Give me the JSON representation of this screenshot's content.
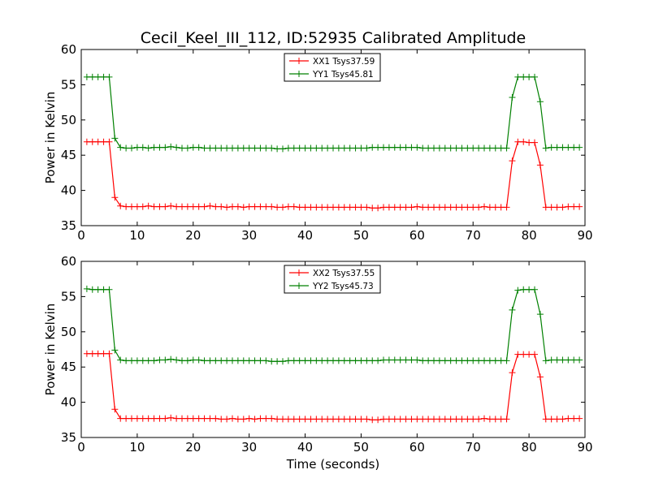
{
  "chart_data": [
    {
      "type": "line",
      "title": "Cecil_Keel_III_112, ID:52935 Calibrated Amplitude",
      "xlabel": "",
      "ylabel": "Power in Kelvin",
      "xlim": [
        0,
        90
      ],
      "ylim": [
        35,
        60
      ],
      "xticks": [
        0,
        10,
        20,
        30,
        40,
        50,
        60,
        70,
        80,
        90
      ],
      "yticks": [
        35,
        40,
        45,
        50,
        55,
        60
      ],
      "grid": false,
      "legend_position": "top-center",
      "series": [
        {
          "name": "XX1 Tsys37.59",
          "color": "#ff0000",
          "x": [
            1,
            2,
            3,
            4,
            5,
            6,
            7,
            8,
            9,
            10,
            11,
            12,
            13,
            14,
            15,
            16,
            17,
            18,
            19,
            20,
            21,
            22,
            23,
            24,
            25,
            26,
            27,
            28,
            29,
            30,
            31,
            32,
            33,
            34,
            35,
            36,
            37,
            38,
            39,
            40,
            41,
            42,
            43,
            44,
            45,
            46,
            47,
            48,
            49,
            50,
            51,
            52,
            53,
            54,
            55,
            56,
            57,
            58,
            59,
            60,
            61,
            62,
            63,
            64,
            65,
            66,
            67,
            68,
            69,
            70,
            71,
            72,
            73,
            74,
            75,
            76,
            77,
            78,
            79,
            80,
            81,
            82,
            83,
            84,
            85,
            86,
            87,
            88,
            89
          ],
          "values": [
            46.9,
            46.9,
            46.9,
            46.9,
            46.9,
            39.0,
            37.8,
            37.7,
            37.7,
            37.7,
            37.7,
            37.8,
            37.7,
            37.7,
            37.7,
            37.8,
            37.7,
            37.7,
            37.7,
            37.7,
            37.7,
            37.7,
            37.8,
            37.7,
            37.7,
            37.6,
            37.7,
            37.7,
            37.6,
            37.7,
            37.7,
            37.7,
            37.7,
            37.7,
            37.6,
            37.6,
            37.7,
            37.7,
            37.6,
            37.6,
            37.6,
            37.6,
            37.6,
            37.6,
            37.6,
            37.6,
            37.6,
            37.6,
            37.6,
            37.6,
            37.6,
            37.5,
            37.5,
            37.6,
            37.6,
            37.6,
            37.6,
            37.6,
            37.6,
            37.7,
            37.6,
            37.6,
            37.6,
            37.6,
            37.6,
            37.6,
            37.6,
            37.6,
            37.6,
            37.6,
            37.6,
            37.7,
            37.6,
            37.6,
            37.6,
            37.6,
            44.2,
            46.9,
            46.9,
            46.8,
            46.8,
            43.6,
            37.6,
            37.6,
            37.6,
            37.6,
            37.7,
            37.7,
            37.7
          ]
        },
        {
          "name": "YY1 Tsys45.81",
          "color": "#008000",
          "x": [
            1,
            2,
            3,
            4,
            5,
            6,
            7,
            8,
            9,
            10,
            11,
            12,
            13,
            14,
            15,
            16,
            17,
            18,
            19,
            20,
            21,
            22,
            23,
            24,
            25,
            26,
            27,
            28,
            29,
            30,
            31,
            32,
            33,
            34,
            35,
            36,
            37,
            38,
            39,
            40,
            41,
            42,
            43,
            44,
            45,
            46,
            47,
            48,
            49,
            50,
            51,
            52,
            53,
            54,
            55,
            56,
            57,
            58,
            59,
            60,
            61,
            62,
            63,
            64,
            65,
            66,
            67,
            68,
            69,
            70,
            71,
            72,
            73,
            74,
            75,
            76,
            77,
            78,
            79,
            80,
            81,
            82,
            83,
            84,
            85,
            86,
            87,
            88,
            89
          ],
          "values": [
            56.1,
            56.1,
            56.1,
            56.1,
            56.1,
            47.4,
            46.1,
            46.0,
            46.0,
            46.1,
            46.1,
            46.0,
            46.1,
            46.1,
            46.1,
            46.2,
            46.1,
            46.0,
            46.0,
            46.1,
            46.1,
            46.0,
            46.0,
            46.0,
            46.0,
            46.0,
            46.0,
            46.0,
            46.0,
            46.0,
            46.0,
            46.0,
            46.0,
            46.0,
            45.9,
            45.9,
            46.0,
            46.0,
            46.0,
            46.0,
            46.0,
            46.0,
            46.0,
            46.0,
            46.0,
            46.0,
            46.0,
            46.0,
            46.0,
            46.0,
            46.0,
            46.1,
            46.1,
            46.1,
            46.1,
            46.1,
            46.1,
            46.1,
            46.1,
            46.1,
            46.0,
            46.0,
            46.0,
            46.0,
            46.0,
            46.0,
            46.0,
            46.0,
            46.0,
            46.0,
            46.0,
            46.0,
            46.0,
            46.0,
            46.0,
            46.0,
            53.2,
            56.1,
            56.1,
            56.1,
            56.1,
            52.6,
            46.0,
            46.1,
            46.1,
            46.1,
            46.1,
            46.1,
            46.1
          ]
        }
      ]
    },
    {
      "type": "line",
      "title": "",
      "xlabel": "Time (seconds)",
      "ylabel": "Power in Kelvin",
      "xlim": [
        0,
        90
      ],
      "ylim": [
        35,
        60
      ],
      "xticks": [
        0,
        10,
        20,
        30,
        40,
        50,
        60,
        70,
        80,
        90
      ],
      "yticks": [
        35,
        40,
        45,
        50,
        55,
        60
      ],
      "grid": false,
      "legend_position": "top-center",
      "series": [
        {
          "name": "XX2 Tsys37.55",
          "color": "#ff0000",
          "x": [
            1,
            2,
            3,
            4,
            5,
            6,
            7,
            8,
            9,
            10,
            11,
            12,
            13,
            14,
            15,
            16,
            17,
            18,
            19,
            20,
            21,
            22,
            23,
            24,
            25,
            26,
            27,
            28,
            29,
            30,
            31,
            32,
            33,
            34,
            35,
            36,
            37,
            38,
            39,
            40,
            41,
            42,
            43,
            44,
            45,
            46,
            47,
            48,
            49,
            50,
            51,
            52,
            53,
            54,
            55,
            56,
            57,
            58,
            59,
            60,
            61,
            62,
            63,
            64,
            65,
            66,
            67,
            68,
            69,
            70,
            71,
            72,
            73,
            74,
            75,
            76,
            77,
            78,
            79,
            80,
            81,
            82,
            83,
            84,
            85,
            86,
            87,
            88,
            89
          ],
          "values": [
            46.9,
            46.9,
            46.9,
            46.9,
            46.9,
            39.0,
            37.7,
            37.7,
            37.7,
            37.7,
            37.7,
            37.7,
            37.7,
            37.7,
            37.7,
            37.8,
            37.7,
            37.7,
            37.7,
            37.7,
            37.7,
            37.7,
            37.7,
            37.7,
            37.6,
            37.6,
            37.7,
            37.6,
            37.6,
            37.7,
            37.6,
            37.7,
            37.7,
            37.7,
            37.6,
            37.6,
            37.6,
            37.6,
            37.6,
            37.6,
            37.6,
            37.6,
            37.6,
            37.6,
            37.6,
            37.6,
            37.6,
            37.6,
            37.6,
            37.6,
            37.6,
            37.5,
            37.5,
            37.6,
            37.6,
            37.6,
            37.6,
            37.6,
            37.6,
            37.6,
            37.6,
            37.6,
            37.6,
            37.6,
            37.6,
            37.6,
            37.6,
            37.6,
            37.6,
            37.6,
            37.6,
            37.7,
            37.6,
            37.6,
            37.6,
            37.6,
            44.2,
            46.8,
            46.8,
            46.8,
            46.8,
            43.6,
            37.6,
            37.6,
            37.6,
            37.6,
            37.7,
            37.7,
            37.7
          ]
        },
        {
          "name": "YY2 Tsys45.73",
          "color": "#008000",
          "x": [
            1,
            2,
            3,
            4,
            5,
            6,
            7,
            8,
            9,
            10,
            11,
            12,
            13,
            14,
            15,
            16,
            17,
            18,
            19,
            20,
            21,
            22,
            23,
            24,
            25,
            26,
            27,
            28,
            29,
            30,
            31,
            32,
            33,
            34,
            35,
            36,
            37,
            38,
            39,
            40,
            41,
            42,
            43,
            44,
            45,
            46,
            47,
            48,
            49,
            50,
            51,
            52,
            53,
            54,
            55,
            56,
            57,
            58,
            59,
            60,
            61,
            62,
            63,
            64,
            65,
            66,
            67,
            68,
            69,
            70,
            71,
            72,
            73,
            74,
            75,
            76,
            77,
            78,
            79,
            80,
            81,
            82,
            83,
            84,
            85,
            86,
            87,
            88,
            89
          ],
          "values": [
            56.1,
            56.0,
            56.0,
            56.0,
            56.0,
            47.4,
            46.0,
            45.9,
            45.9,
            45.9,
            45.9,
            45.9,
            45.9,
            46.0,
            46.0,
            46.1,
            46.0,
            45.9,
            45.9,
            46.0,
            46.0,
            45.9,
            45.9,
            45.9,
            45.9,
            45.9,
            45.9,
            45.9,
            45.9,
            45.9,
            45.9,
            45.9,
            45.9,
            45.8,
            45.8,
            45.8,
            45.9,
            45.9,
            45.9,
            45.9,
            45.9,
            45.9,
            45.9,
            45.9,
            45.9,
            45.9,
            45.9,
            45.9,
            45.9,
            45.9,
            45.9,
            45.9,
            45.9,
            46.0,
            46.0,
            46.0,
            46.0,
            46.0,
            46.0,
            46.0,
            45.9,
            45.9,
            45.9,
            45.9,
            45.9,
            45.9,
            45.9,
            45.9,
            45.9,
            45.9,
            45.9,
            45.9,
            45.9,
            45.9,
            45.9,
            45.9,
            53.1,
            55.9,
            56.0,
            56.0,
            56.0,
            52.5,
            45.9,
            46.0,
            46.0,
            46.0,
            46.0,
            46.0,
            46.0
          ]
        }
      ]
    }
  ]
}
